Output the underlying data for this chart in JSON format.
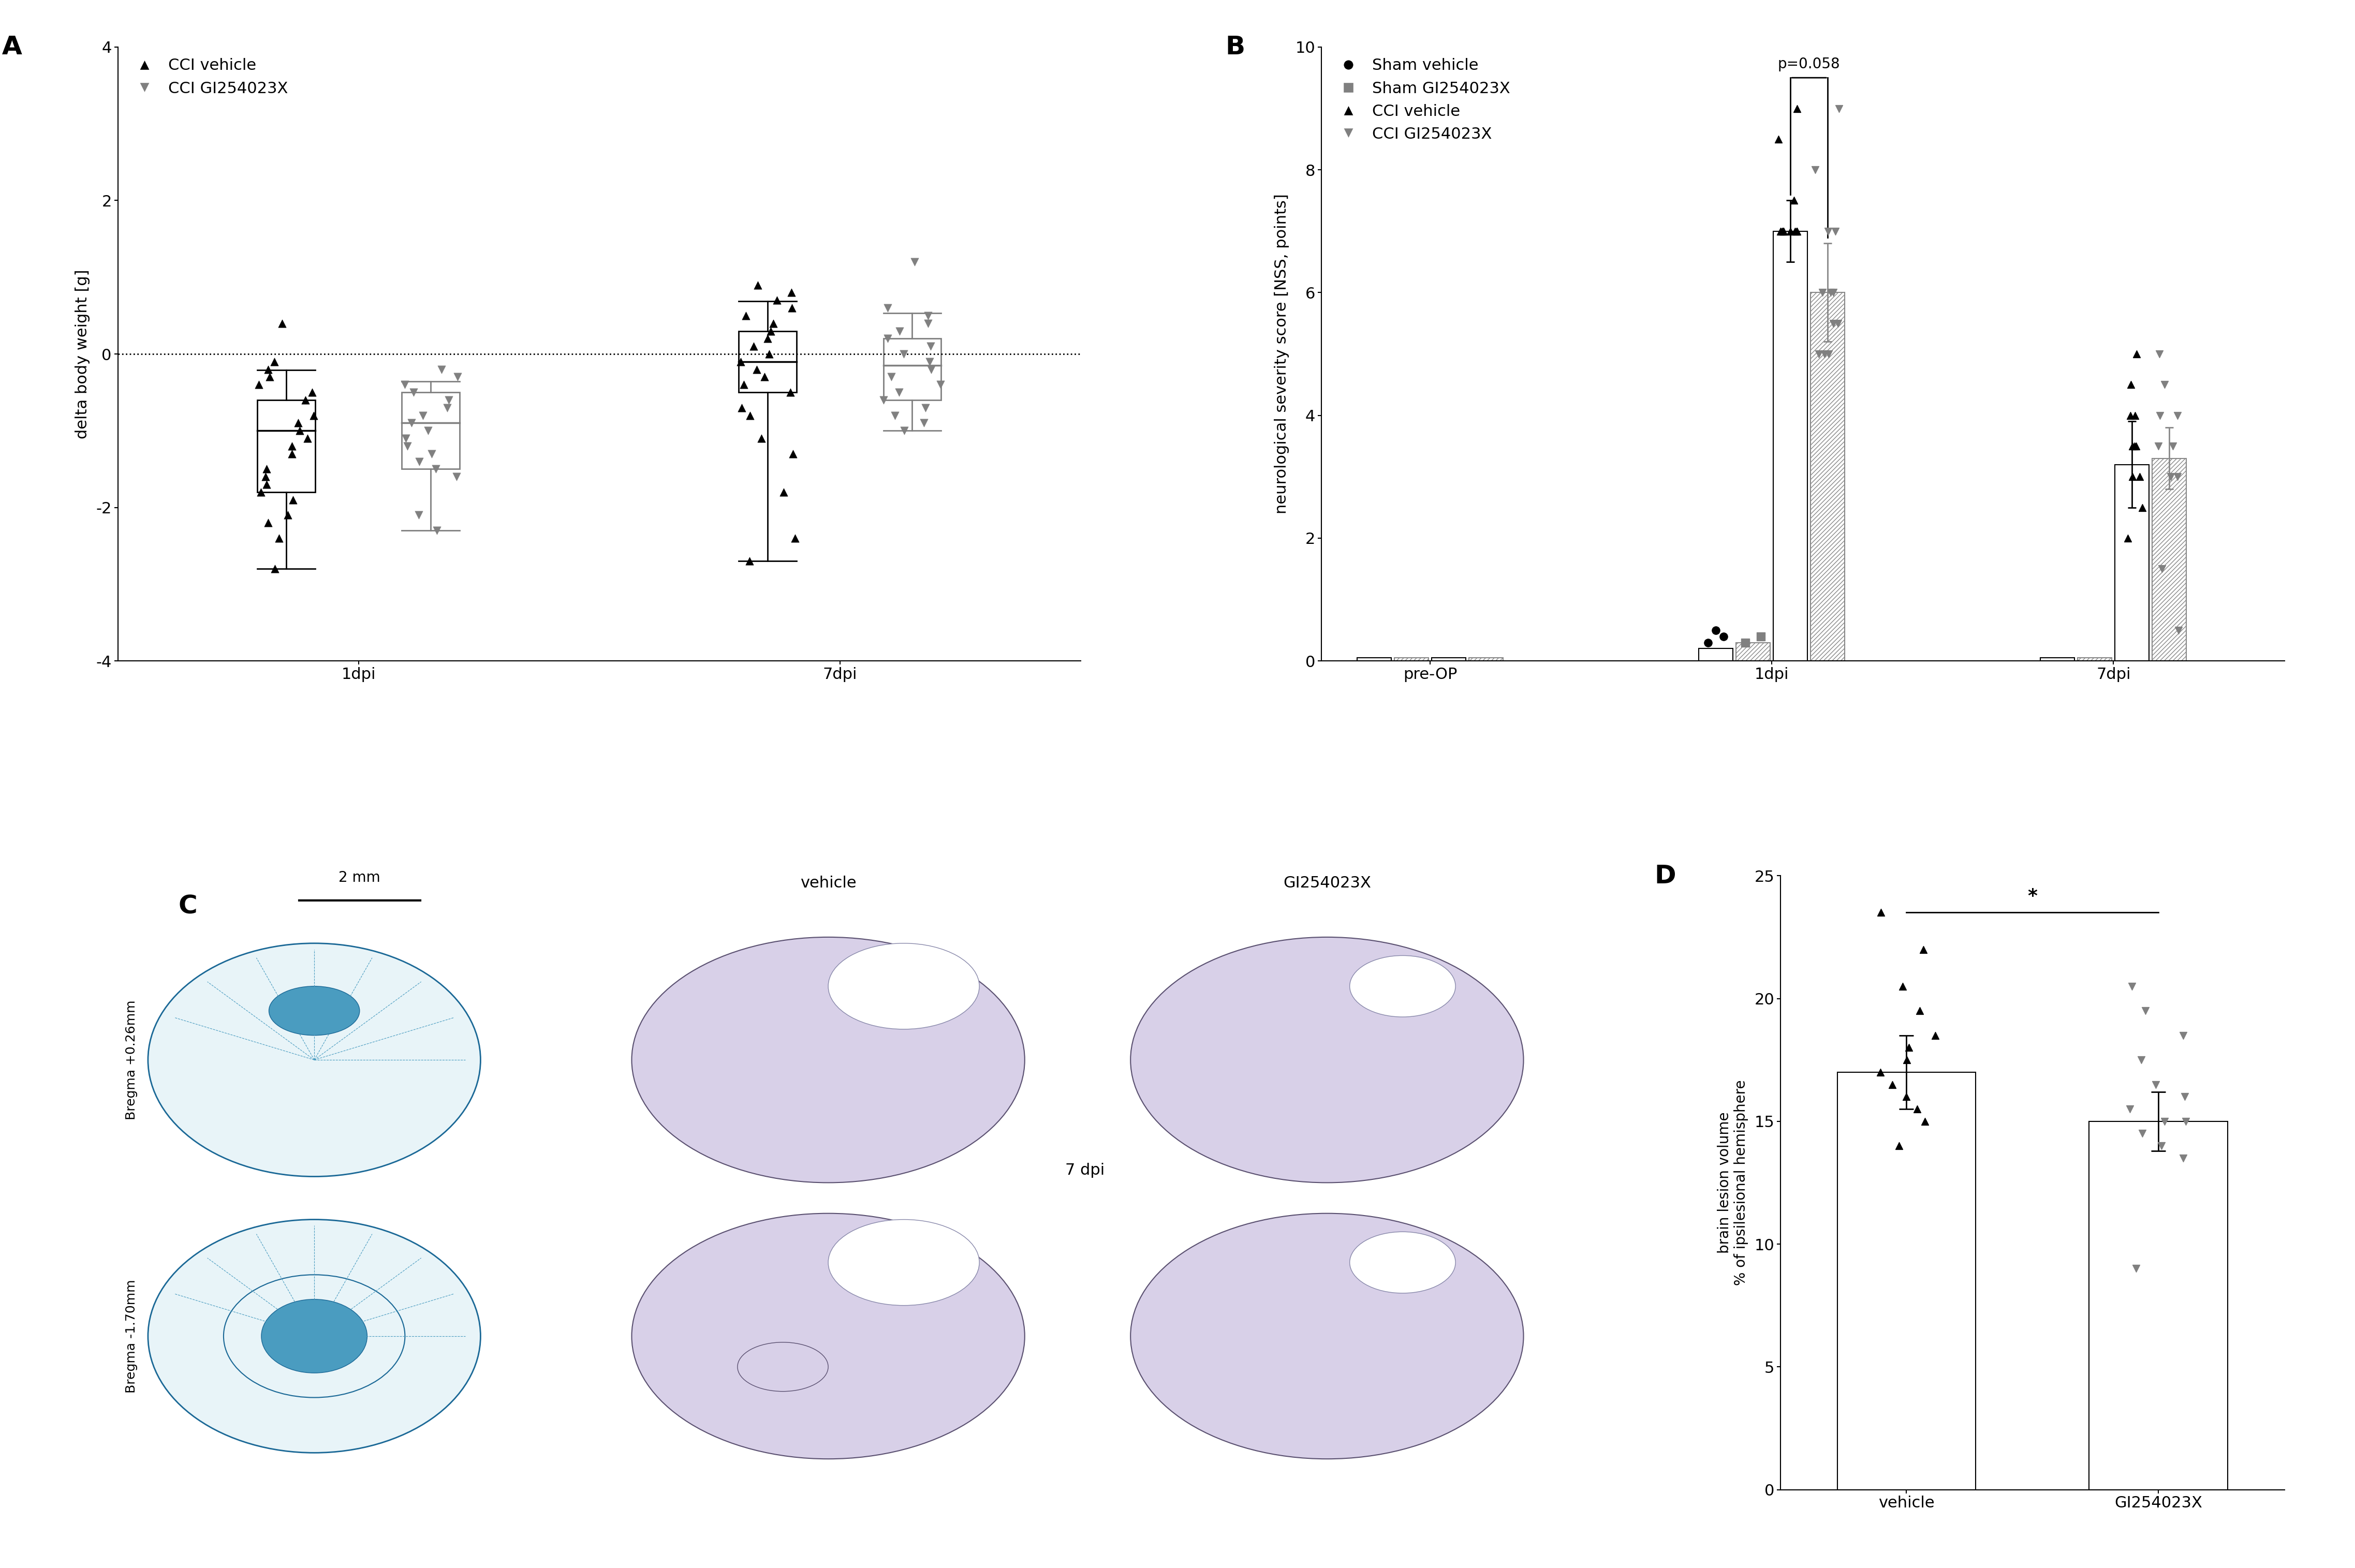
{
  "panel_A": {
    "label": "A",
    "ylabel": "delta body weight [g]",
    "xtick_labels": [
      "1dpi",
      "7dpi"
    ],
    "ylim": [
      -4,
      4
    ],
    "yticks": [
      -4,
      -2,
      0,
      2,
      4
    ],
    "dotted_line_y": 0,
    "cci_vehicle_1dpi": [
      -2.4,
      -0.5,
      -1.0,
      -1.2,
      -1.5,
      -1.7,
      -1.8,
      -1.1,
      -1.3,
      -0.9,
      -0.4,
      -0.8,
      -0.6,
      -0.3,
      -0.2,
      -2.2,
      -2.8,
      -2.1,
      0.4,
      -0.1,
      -1.9,
      -1.6
    ],
    "cci_gi_1dpi": [
      -2.1,
      -0.8,
      -1.0,
      -0.7,
      -0.5,
      -1.3,
      -1.5,
      -0.4,
      -2.3,
      -0.9,
      -1.1,
      -1.6,
      -0.3,
      -0.6,
      -1.4,
      -1.2,
      -0.2
    ],
    "cci_vehicle_7dpi": [
      -0.3,
      0.5,
      0.2,
      -0.1,
      0.8,
      0.1,
      0.7,
      -0.2,
      0.0,
      0.3,
      -2.7,
      -2.4,
      -1.8,
      -1.3,
      -0.5,
      0.4,
      0.6,
      -0.4,
      -0.8,
      -0.7,
      0.9,
      -1.1
    ],
    "cci_gi_7dpi": [
      -0.5,
      -0.2,
      0.0,
      0.3,
      1.2,
      -0.3,
      -0.1,
      0.2,
      -0.4,
      0.5,
      -0.8,
      -0.6,
      0.1,
      -0.9,
      -0.7,
      0.4,
      0.6,
      -1.0
    ],
    "box1dpi_veh_median": -1.0,
    "box1dpi_veh_q1": -1.8,
    "box1dpi_veh_q3": -0.6,
    "box7dpi_veh_median": -0.1,
    "box7dpi_veh_q1": -0.5,
    "box7dpi_veh_q3": 0.3,
    "box1dpi_gi_median": -0.9,
    "box1dpi_gi_q1": -1.5,
    "box1dpi_gi_q3": -0.5,
    "box7dpi_gi_median": -0.15,
    "box7dpi_gi_q1": -0.6,
    "box7dpi_gi_q3": 0.2,
    "color_vehicle": "#000000",
    "color_gi": "#808080",
    "marker_vehicle": "^",
    "marker_gi": "v"
  },
  "panel_B": {
    "label": "B",
    "ylabel": "neurological severity score [NSS, points]",
    "xtick_labels": [
      "pre-OP",
      "1dpi",
      "7dpi"
    ],
    "ylim": [
      0,
      10
    ],
    "yticks": [
      0,
      2,
      4,
      6,
      8,
      10
    ],
    "bar_positions": [
      0,
      1,
      2
    ],
    "sham_vehicle_bars": [
      0.05,
      0.2,
      0.05
    ],
    "sham_gi_bars": [
      0.05,
      0.2,
      0.05
    ],
    "cci_vehicle_bars": [
      0.05,
      7.0,
      3.2
    ],
    "cci_gi_bars": [
      0.05,
      6.0,
      3.3
    ],
    "cci_vehicle_1dpi_pts": [
      9.0,
      8.5,
      7.5,
      7.0,
      7.0,
      7.0,
      7.0,
      7.0,
      7.0,
      7.0,
      7.0
    ],
    "cci_gi_1dpi_pts": [
      9.0,
      8.0,
      7.0,
      7.0,
      6.0,
      6.0,
      6.0,
      5.5,
      5.5,
      5.0,
      5.0,
      5.0
    ],
    "cci_vehicle_7dpi_pts": [
      5.0,
      4.5,
      4.0,
      4.0,
      3.5,
      3.5,
      3.5,
      3.0,
      3.0,
      2.5,
      2.0
    ],
    "cci_gi_7dpi_pts": [
      5.0,
      4.5,
      4.0,
      4.0,
      3.5,
      3.5,
      3.0,
      3.0,
      1.5,
      0.5
    ],
    "sham_vehicle_pts_preop": [
      0.0,
      0.0,
      0.0,
      0.0
    ],
    "sham_gi_pts_preop": [
      0.0,
      0.0,
      0.0,
      0.0
    ],
    "p_value_text": "p=0.058",
    "color_sham_vehicle": "#000000",
    "color_sham_gi": "#808080",
    "color_cci_vehicle": "#000000",
    "color_cci_gi": "#808080"
  },
  "panel_D": {
    "label": "D",
    "ylabel": "brain lesion volume\n% of ipsilesional hemisphere",
    "xtick_labels": [
      "vehicle",
      "GI254023X"
    ],
    "ylim": [
      0,
      25
    ],
    "yticks": [
      0,
      5,
      10,
      15,
      20,
      25
    ],
    "vehicle_mean": 17.0,
    "vehicle_sem": 1.5,
    "gi_mean": 15.0,
    "gi_sem": 1.2,
    "vehicle_pts": [
      23.5,
      22.0,
      20.5,
      19.5,
      18.5,
      18.0,
      17.5,
      17.0,
      16.5,
      16.0,
      15.5,
      15.0,
      14.0
    ],
    "gi_pts": [
      20.5,
      19.5,
      18.5,
      17.5,
      16.5,
      16.0,
      15.5,
      15.0,
      15.0,
      14.5,
      14.0,
      13.5,
      9.0
    ],
    "star_text": "*",
    "color_vehicle": "#000000",
    "color_gi": "#808080",
    "bar_color": "#ffffff",
    "bar_edgecolor": "#000000"
  },
  "panel_C": {
    "label": "C",
    "scale_bar_text": "2 mm",
    "bregma_top": "Bregma +0.26mm",
    "bregma_bottom": "Bregma -1.70mm",
    "vehicle_label": "vehicle",
    "gi_label": "GI254023X",
    "dpi_label": "7 dpi"
  },
  "figure": {
    "bg_color": "#ffffff",
    "font_color": "#000000",
    "font_size": 22,
    "label_font_size": 36
  }
}
